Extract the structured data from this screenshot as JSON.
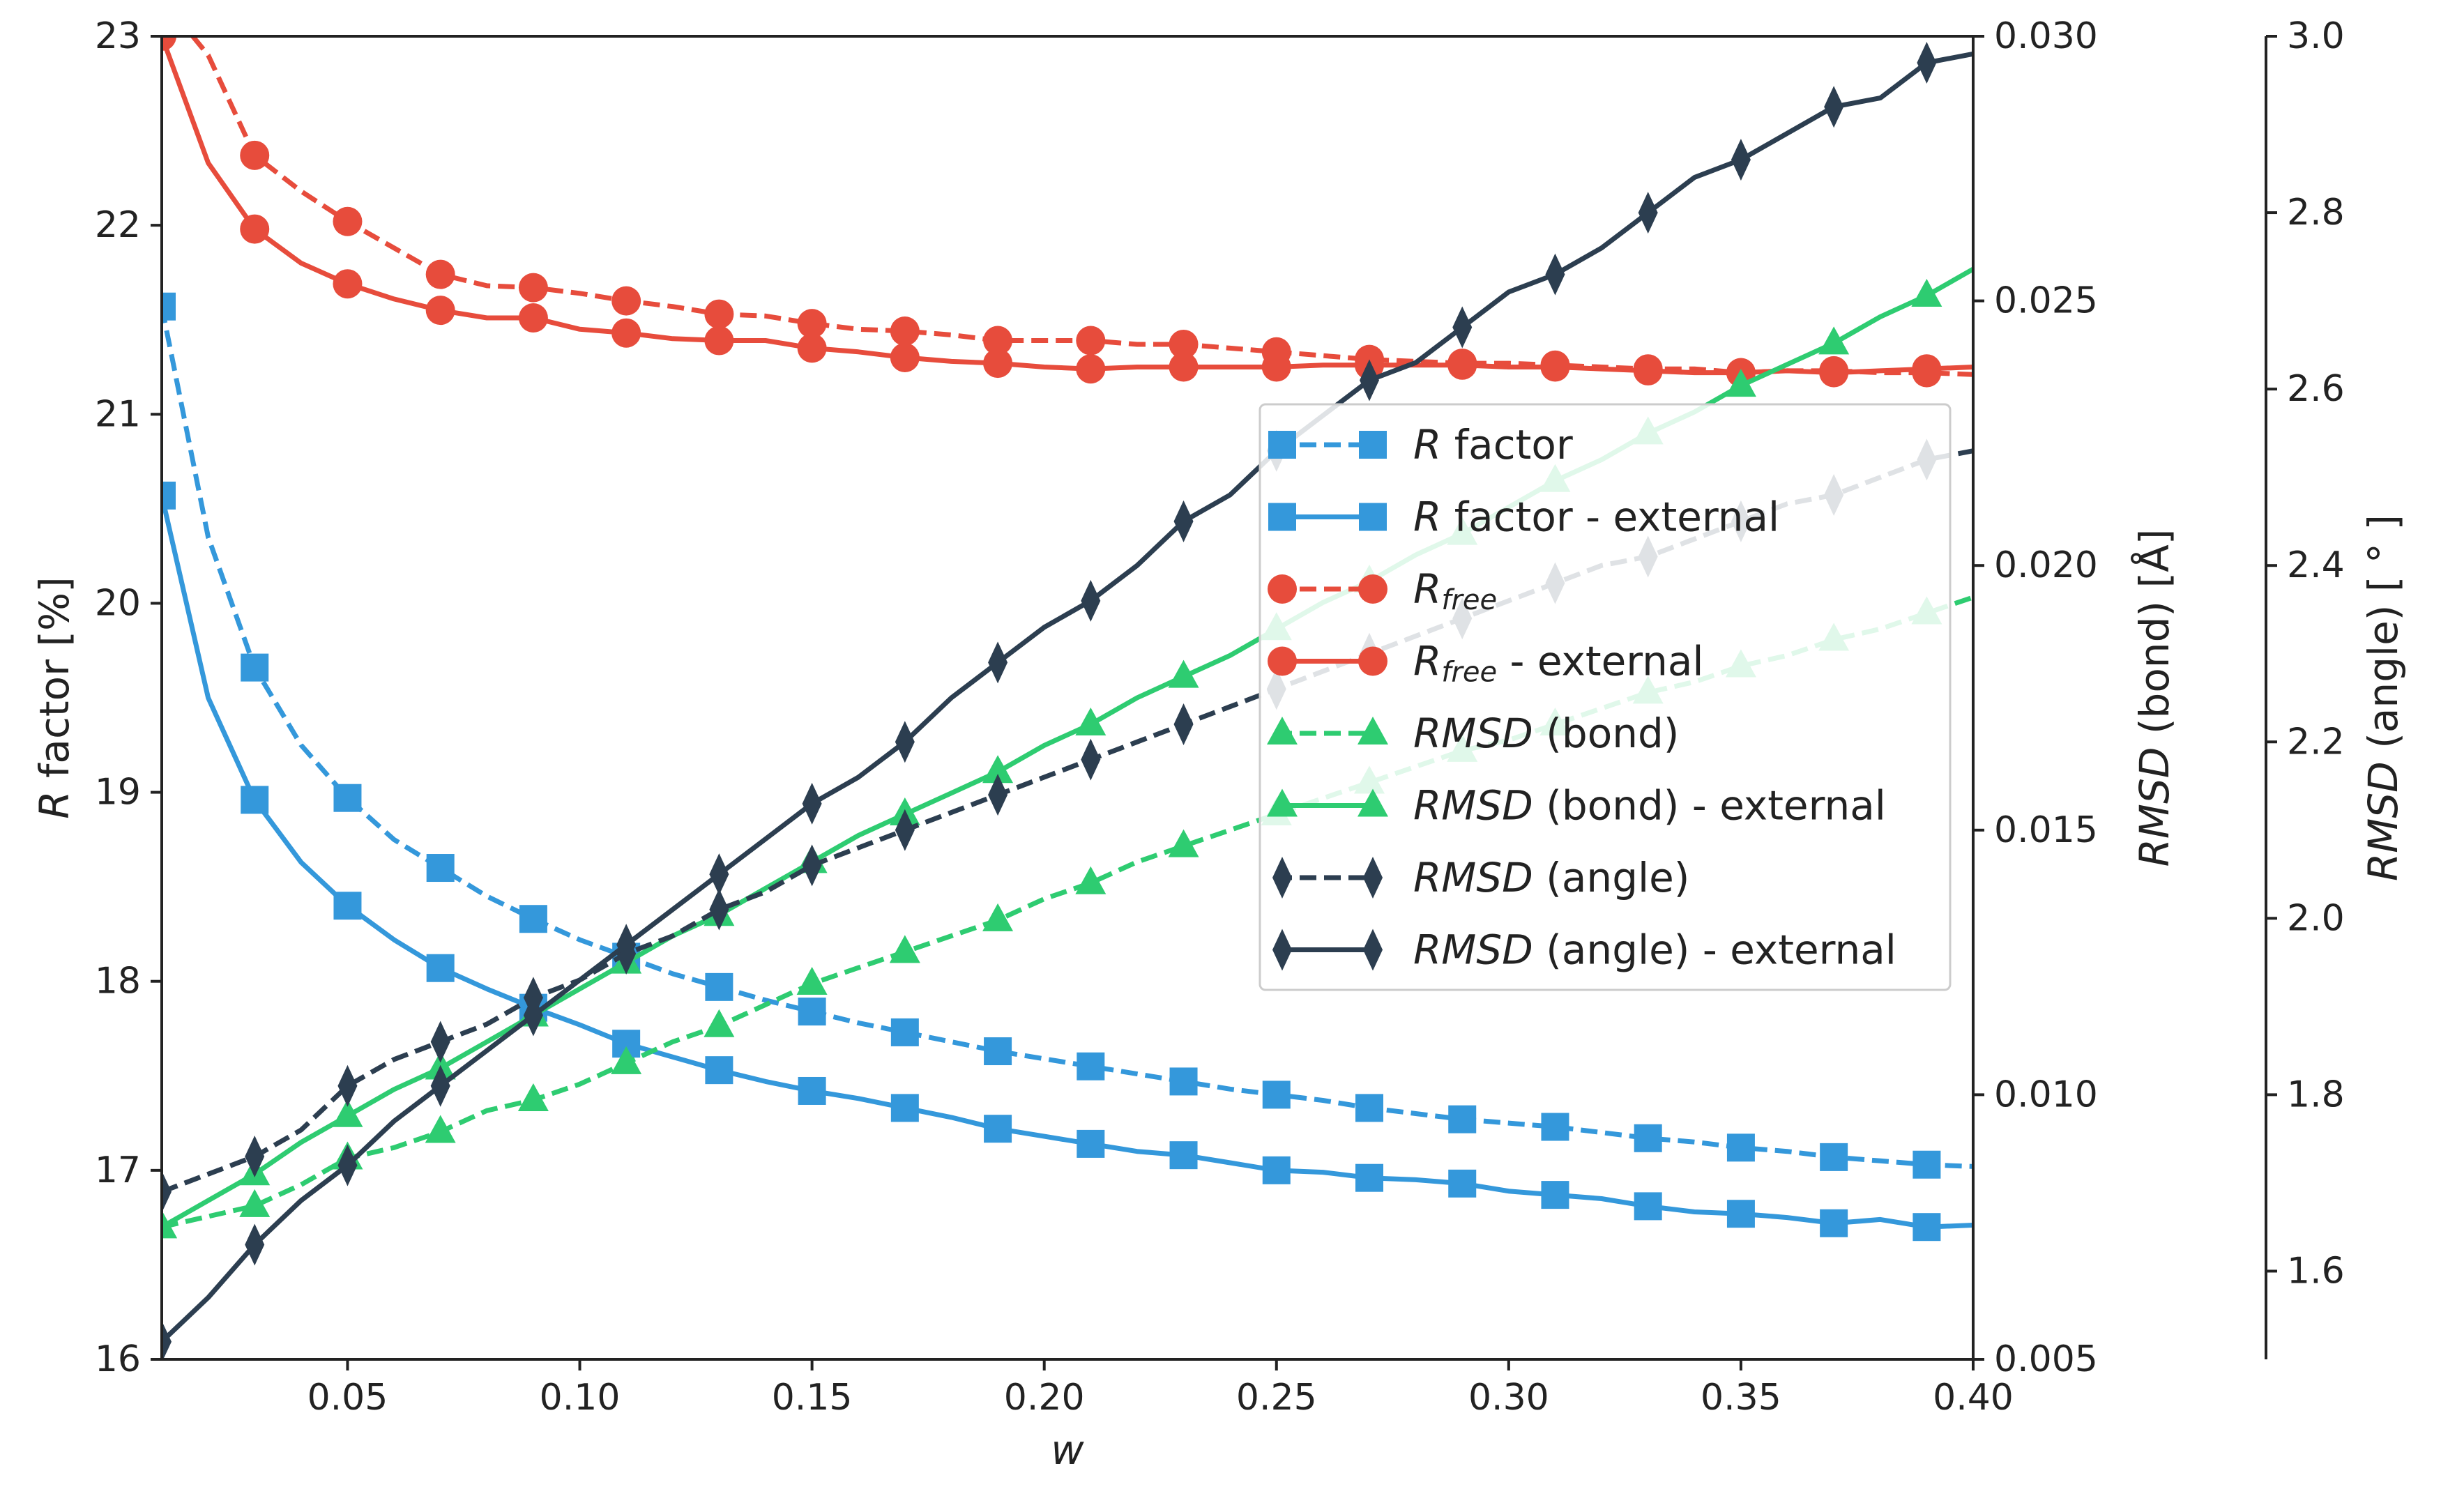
{
  "chart_data": {
    "type": "line",
    "xlabel": "w",
    "xlim": [
      0.01,
      0.4
    ],
    "xticks": [
      "0.05",
      "0.10",
      "0.15",
      "0.20",
      "0.25",
      "0.30",
      "0.35",
      "0.40"
    ],
    "axes": {
      "left": {
        "label": "R factor [%]",
        "ylim": [
          16,
          23
        ],
        "ticks": [
          "16",
          "17",
          "18",
          "19",
          "20",
          "21",
          "22",
          "23"
        ]
      },
      "right1": {
        "label_italic": "RMSD",
        "label_rest": " (bond) [Å]",
        "ylim": [
          0.005,
          0.03
        ],
        "ticks": [
          "0.005",
          "0.010",
          "0.015",
          "0.020",
          "0.025",
          "0.030"
        ]
      },
      "right2": {
        "label_italic": "RMSD",
        "label_rest": " (angle) [ ° ]",
        "ylim": [
          1.5,
          3.0
        ],
        "ticks": [
          "1.6",
          "1.8",
          "2.0",
          "2.2",
          "2.4",
          "2.6",
          "2.8",
          "3.0"
        ]
      }
    },
    "grid": false,
    "legend_position": "center-right",
    "x": [
      0.01,
      0.02,
      0.03,
      0.04,
      0.05,
      0.06,
      0.07,
      0.08,
      0.09,
      0.1,
      0.11,
      0.12,
      0.13,
      0.14,
      0.15,
      0.16,
      0.17,
      0.18,
      0.19,
      0.2,
      0.21,
      0.22,
      0.23,
      0.24,
      0.25,
      0.26,
      0.27,
      0.28,
      0.29,
      0.3,
      0.31,
      0.32,
      0.33,
      0.34,
      0.35,
      0.36,
      0.37,
      0.38,
      0.39,
      0.4
    ],
    "series": [
      {
        "label_main": "R",
        "label_sub": "",
        "label_rest": " factor",
        "axis": "left",
        "color": "#3498db",
        "dash": true,
        "marker": "square",
        "values": [
          21.57,
          20.35,
          19.66,
          19.25,
          18.97,
          18.75,
          18.6,
          18.45,
          18.33,
          18.22,
          18.13,
          18.04,
          17.97,
          17.9,
          17.84,
          17.78,
          17.73,
          17.68,
          17.63,
          17.59,
          17.55,
          17.51,
          17.47,
          17.43,
          17.4,
          17.37,
          17.33,
          17.3,
          17.27,
          17.25,
          17.23,
          17.2,
          17.17,
          17.15,
          17.12,
          17.1,
          17.07,
          17.05,
          17.03,
          17.02
        ]
      },
      {
        "label_main": "R",
        "label_sub": "",
        "label_rest": " factor - external",
        "axis": "left",
        "color": "#3498db",
        "dash": false,
        "marker": "square",
        "values": [
          20.57,
          19.5,
          18.96,
          18.63,
          18.4,
          18.22,
          18.07,
          17.96,
          17.86,
          17.77,
          17.67,
          17.6,
          17.53,
          17.47,
          17.42,
          17.38,
          17.33,
          17.28,
          17.22,
          17.18,
          17.14,
          17.1,
          17.08,
          17.04,
          17.0,
          16.99,
          16.96,
          16.95,
          16.93,
          16.89,
          16.87,
          16.85,
          16.81,
          16.78,
          16.77,
          16.75,
          16.72,
          16.74,
          16.7,
          16.71
        ]
      },
      {
        "label_main": "R",
        "label_sub": "free",
        "label_rest": "",
        "axis": "left",
        "color": "#e74c3c",
        "dash": true,
        "marker": "circle",
        "values": [
          23.2,
          22.9,
          22.37,
          22.18,
          22.02,
          21.88,
          21.74,
          21.68,
          21.67,
          21.64,
          21.6,
          21.57,
          21.53,
          21.52,
          21.48,
          21.45,
          21.44,
          21.42,
          21.39,
          21.39,
          21.39,
          21.37,
          21.37,
          21.35,
          21.33,
          21.31,
          21.29,
          21.28,
          21.27,
          21.27,
          21.26,
          21.25,
          21.24,
          21.24,
          21.22,
          21.23,
          21.23,
          21.22,
          21.22,
          21.21
        ]
      },
      {
        "label_main": "R",
        "label_sub": "free",
        "label_rest": " - external",
        "axis": "left",
        "color": "#e74c3c",
        "dash": false,
        "marker": "circle",
        "values": [
          23.0,
          22.33,
          21.98,
          21.8,
          21.69,
          21.61,
          21.55,
          21.51,
          21.51,
          21.45,
          21.43,
          21.4,
          21.39,
          21.39,
          21.35,
          21.33,
          21.3,
          21.28,
          21.27,
          21.25,
          21.24,
          21.25,
          21.25,
          21.25,
          21.25,
          21.26,
          21.26,
          21.26,
          21.26,
          21.25,
          21.25,
          21.24,
          21.23,
          21.22,
          21.22,
          21.23,
          21.22,
          21.23,
          21.24,
          21.25
        ]
      },
      {
        "label_main": "RMSD",
        "label_sub": "",
        "label_rest": " (bond)",
        "axis": "right1",
        "color": "#2ecc71",
        "dash": true,
        "marker": "triangle",
        "values": [
          0.0075,
          0.0077,
          0.0079,
          0.0083,
          0.0088,
          0.009,
          0.0093,
          0.0097,
          0.0099,
          0.0102,
          0.0106,
          0.011,
          0.0113,
          0.0117,
          0.0121,
          0.0124,
          0.0127,
          0.013,
          0.0133,
          0.0137,
          0.014,
          0.0144,
          0.0147,
          0.015,
          0.0153,
          0.0156,
          0.0159,
          0.0162,
          0.0165,
          0.0167,
          0.017,
          0.0173,
          0.0176,
          0.0178,
          0.0181,
          0.0183,
          0.0186,
          0.0188,
          0.0191,
          0.0194
        ]
      },
      {
        "label_main": "RMSD",
        "label_sub": "",
        "label_rest": " (bond) - external",
        "axis": "right1",
        "color": "#2ecc71",
        "dash": false,
        "marker": "triangle",
        "values": [
          0.0075,
          0.008,
          0.0085,
          0.0091,
          0.0096,
          0.0101,
          0.0105,
          0.011,
          0.0115,
          0.012,
          0.0125,
          0.013,
          0.0134,
          0.0139,
          0.0144,
          0.0149,
          0.0153,
          0.0157,
          0.0161,
          0.0166,
          0.017,
          0.0175,
          0.0179,
          0.0183,
          0.0188,
          0.0193,
          0.0197,
          0.0202,
          0.0206,
          0.0211,
          0.0216,
          0.022,
          0.0225,
          0.0229,
          0.0234,
          0.0238,
          0.0242,
          0.0247,
          0.0251,
          0.0256
        ]
      },
      {
        "label_main": "RMSD",
        "label_sub": "",
        "label_rest": " (angle)",
        "axis": "right2",
        "color": "#2c3e50",
        "dash": true,
        "marker": "diamond",
        "values": [
          1.69,
          1.71,
          1.73,
          1.76,
          1.81,
          1.84,
          1.86,
          1.88,
          1.91,
          1.93,
          1.96,
          1.98,
          2.01,
          2.03,
          2.06,
          2.08,
          2.1,
          2.12,
          2.14,
          2.16,
          2.18,
          2.2,
          2.22,
          2.24,
          2.26,
          2.28,
          2.3,
          2.32,
          2.34,
          2.36,
          2.38,
          2.4,
          2.41,
          2.43,
          2.45,
          2.47,
          2.48,
          2.5,
          2.52,
          2.53
        ]
      },
      {
        "label_main": "RMSD",
        "label_sub": "",
        "label_rest": " (angle) - external",
        "axis": "right2",
        "color": "#2c3e50",
        "dash": false,
        "marker": "diamond",
        "values": [
          1.52,
          1.57,
          1.63,
          1.68,
          1.72,
          1.77,
          1.81,
          1.85,
          1.89,
          1.93,
          1.97,
          2.01,
          2.05,
          2.09,
          2.13,
          2.16,
          2.2,
          2.25,
          2.29,
          2.33,
          2.36,
          2.4,
          2.45,
          2.48,
          2.53,
          2.57,
          2.61,
          2.63,
          2.67,
          2.71,
          2.73,
          2.76,
          2.8,
          2.84,
          2.86,
          2.89,
          2.92,
          2.93,
          2.97,
          2.98
        ]
      }
    ]
  }
}
